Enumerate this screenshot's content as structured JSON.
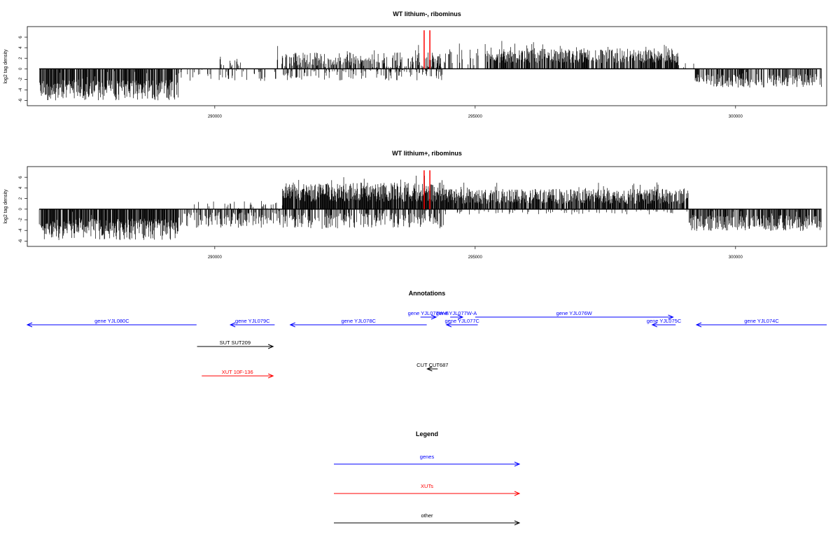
{
  "chart_data": [
    {
      "type": "bar",
      "title": "WT lithium-, ribominus",
      "ylabel": "log2 tag density",
      "xlabel": "",
      "xlim": [
        286400,
        301750
      ],
      "ylim": [
        -7,
        8
      ],
      "x_ticks": [
        290000,
        295000,
        300000
      ],
      "y_ticks": [
        -6,
        -4,
        -2,
        0,
        2,
        4,
        6
      ],
      "baseline_span": [
        286630,
        301650
      ],
      "markers": {
        "color": "#ff0000",
        "x": [
          294020,
          294130
        ],
        "y_range": [
          0,
          7.3
        ]
      },
      "series": [
        {
          "data_segments": [
            {
              "x": [
                286630,
                289300
              ],
              "level": -4.0,
              "jitter": 2.0,
              "density": 0.85,
              "sign": -1
            },
            {
              "x": [
                289300,
                291200
              ],
              "level": -1.2,
              "jitter": 1.1,
              "density": 0.18,
              "sign": -1
            },
            {
              "x": [
                290100,
                290500
              ],
              "level": 1.2,
              "jitter": 0.8,
              "density": 0.2,
              "sign": 1
            },
            {
              "x": [
                291200,
                294400
              ],
              "level": 1.6,
              "jitter": 1.5,
              "density": 0.55,
              "sign": 1
            },
            {
              "x": [
                291300,
                294400
              ],
              "level": -1.2,
              "jitter": 1.0,
              "density": 0.3,
              "sign": -1
            },
            {
              "x": [
                294400,
                295200
              ],
              "level": 2.2,
              "jitter": 1.6,
              "density": 0.25,
              "sign": 1
            },
            {
              "x": [
                295200,
                298900
              ],
              "level": 2.5,
              "jitter": 1.4,
              "density": 0.75,
              "sign": 1
            },
            {
              "x": [
                298900,
                299200
              ],
              "level": 0.8,
              "jitter": 0.6,
              "density": 0.08,
              "sign": 1
            },
            {
              "x": [
                299200,
                301650
              ],
              "level": -2.3,
              "jitter": 1.3,
              "density": 0.55,
              "sign": -1
            }
          ]
        }
      ]
    },
    {
      "type": "bar",
      "title": "WT lithium+, ribominus",
      "ylabel": "log2 tag density",
      "xlabel": "",
      "xlim": [
        286400,
        301750
      ],
      "ylim": [
        -7,
        8
      ],
      "x_ticks": [
        290000,
        295000,
        300000
      ],
      "y_ticks": [
        -6,
        -4,
        -2,
        0,
        2,
        4,
        6
      ],
      "baseline_span": [
        286630,
        301650
      ],
      "markers": {
        "color": "#ff0000",
        "x": [
          294020,
          294130
        ],
        "y_range": [
          0,
          7.3
        ]
      },
      "series": [
        {
          "data_segments": [
            {
              "x": [
                286630,
                289300
              ],
              "level": -3.8,
              "jitter": 2.0,
              "density": 0.9,
              "sign": -1
            },
            {
              "x": [
                289300,
                291300
              ],
              "level": -2.0,
              "jitter": 1.5,
              "density": 0.5,
              "sign": -1
            },
            {
              "x": [
                289600,
                291300
              ],
              "level": 0.8,
              "jitter": 0.7,
              "density": 0.15,
              "sign": 1
            },
            {
              "x": [
                291300,
                294400
              ],
              "level": 3.2,
              "jitter": 1.8,
              "density": 0.95,
              "sign": 1
            },
            {
              "x": [
                291300,
                294400
              ],
              "level": -2.2,
              "jitter": 1.5,
              "density": 0.5,
              "sign": -1
            },
            {
              "x": [
                294400,
                299100
              ],
              "level": 2.4,
              "jitter": 1.4,
              "density": 0.85,
              "sign": 1
            },
            {
              "x": [
                294400,
                299100
              ],
              "level": -0.5,
              "jitter": 0.5,
              "density": 0.1,
              "sign": -1
            },
            {
              "x": [
                299100,
                301650
              ],
              "level": -2.6,
              "jitter": 1.5,
              "density": 0.7,
              "sign": -1
            }
          ]
        }
      ]
    }
  ],
  "annotations": {
    "title": "Annotations",
    "features": [
      {
        "label": "gene YJL080C",
        "color": "#0000ff",
        "strand": "-",
        "start": 286400,
        "end": 289650,
        "track": 1
      },
      {
        "label": "gene YJL079C",
        "color": "#0000ff",
        "strand": "-",
        "start": 290300,
        "end": 291150,
        "track": 1
      },
      {
        "label": "gene YJL078C",
        "color": "#0000ff",
        "strand": "-",
        "start": 291450,
        "end": 294070,
        "track": 1
      },
      {
        "label": "gene YJL077W-B",
        "color": "#0000ff",
        "strand": "+",
        "start": 293950,
        "end": 294250,
        "track": 0
      },
      {
        "label": "gene YJL077W-A",
        "color": "#0000ff",
        "strand": "+",
        "start": 294520,
        "end": 294760,
        "track": 0
      },
      {
        "label": "gene YJL077C",
        "color": "#0000ff",
        "strand": "-",
        "start": 294450,
        "end": 295050,
        "track": 1
      },
      {
        "label": "gene YJL076W",
        "color": "#0000ff",
        "strand": "+",
        "start": 295000,
        "end": 298800,
        "track": 0
      },
      {
        "label": "gene YJL075C",
        "color": "#0000ff",
        "strand": "-",
        "start": 298400,
        "end": 298850,
        "track": 1
      },
      {
        "label": "gene YJL074C",
        "color": "#0000ff",
        "strand": "-",
        "start": 299250,
        "end": 301750,
        "track": 1
      }
    ],
    "other": [
      {
        "label": "SUT SUT209",
        "color": "#000000",
        "strand": "+",
        "start": 289660,
        "end": 291120,
        "track": 2
      },
      {
        "label": "CUT CUT687",
        "color": "#000000",
        "strand": "-",
        "start": 294080,
        "end": 294280,
        "track": 3
      },
      {
        "label": "XUT 10F-136",
        "color": "#ff0000",
        "strand": "+",
        "start": 289750,
        "end": 291120,
        "track": 4
      }
    ]
  },
  "legend": {
    "title": "Legend",
    "items": [
      {
        "label": "genes",
        "color": "#0000ff"
      },
      {
        "label": "XUTs",
        "color": "#ff0000"
      },
      {
        "label": "other",
        "color": "#000000"
      }
    ]
  }
}
